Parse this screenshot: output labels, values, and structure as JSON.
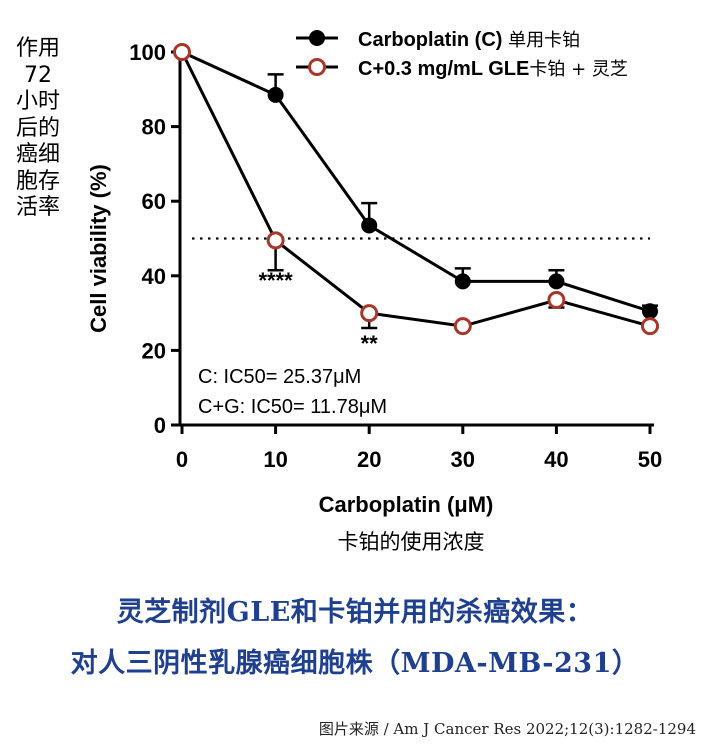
{
  "side_label": "作用72小时后的癌细胞存活率",
  "chart_data": {
    "type": "line",
    "xlabel": "Carboplatin (μM)",
    "xlabel_cn": "卡铂的使用浓度",
    "ylabel": "Cell viability (%)",
    "x": [
      0,
      10,
      20,
      30,
      40,
      50
    ],
    "xlim": [
      0,
      50
    ],
    "ylim": [
      0,
      100
    ],
    "xticks": [
      0,
      10,
      20,
      30,
      40,
      50
    ],
    "yticks": [
      0,
      20,
      40,
      60,
      80,
      100
    ],
    "reference_line": 50,
    "grid": false,
    "legend_position": "top-right",
    "series": [
      {
        "name": "Carboplatin (C)",
        "name_cn": "单用卡铂",
        "marker": "filled-circle",
        "color": "#000000",
        "values": [
          100,
          88.5,
          53.5,
          38.5,
          38.5,
          30.5
        ],
        "errors": [
          0,
          5.5,
          6,
          3.5,
          3,
          1.5
        ]
      },
      {
        "name": "C+0.3 mg/mL GLE",
        "name_cn": "卡铂 + 灵芝",
        "marker": "open-circle",
        "color": "#a8372b",
        "values": [
          100,
          49.5,
          30,
          26.5,
          33.5,
          26.5
        ],
        "errors": [
          0,
          8,
          4,
          0,
          2,
          0
        ]
      }
    ],
    "annotations": [
      {
        "text": "****",
        "x": 10,
        "y": 40
      },
      {
        "text": "**",
        "x": 20,
        "y": 23
      }
    ],
    "ic50_labels": [
      "C: IC50= 25.37μM",
      "C+G: IC50= 11.78μM"
    ]
  },
  "caption": {
    "line1": "灵芝制剂GLE和卡铂并用的杀癌效果：",
    "line2": "对人三阴性乳腺癌细胞株（MDA-MB-231）"
  },
  "source": "图片来源 / Am J Cancer Res 2022;12(3):1282-1294"
}
